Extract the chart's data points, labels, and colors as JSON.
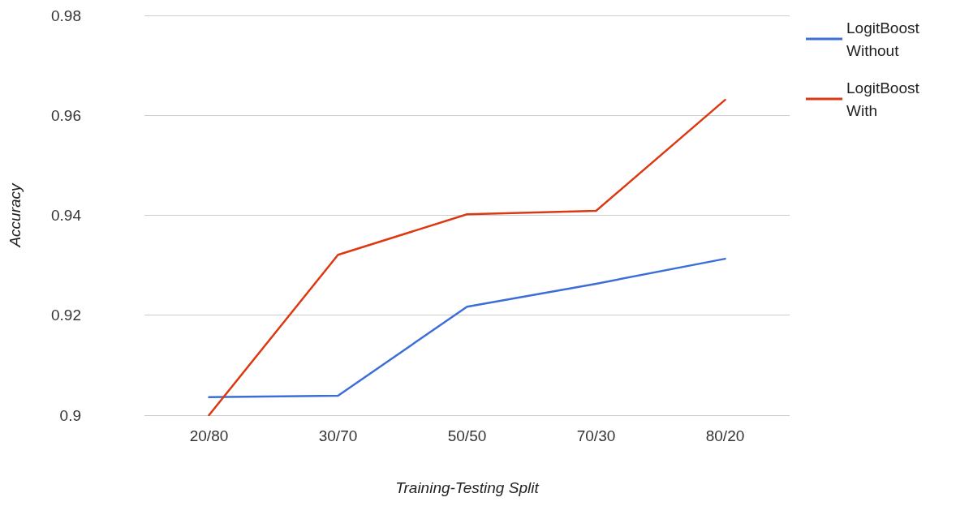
{
  "chart_data": {
    "type": "line",
    "xlabel": "Training-Testing Split",
    "ylabel": "Accuracy",
    "categories": [
      "20/80",
      "30/70",
      "50/50",
      "70/30",
      "80/20"
    ],
    "series": [
      {
        "name": "LogitBoost Without",
        "color": "#3d6ed8",
        "values": [
          0.9036,
          0.9039,
          0.9217,
          0.9263,
          0.9313
        ]
      },
      {
        "name": "LogitBoost With",
        "color": "#dc3912",
        "values": [
          0.9,
          0.9321,
          0.9402,
          0.9409,
          0.9631
        ]
      }
    ],
    "ylim": [
      0.9,
      0.98
    ],
    "yticks": [
      0.9,
      0.92,
      0.94,
      0.96,
      0.98
    ],
    "grid": "y",
    "legend": "top right",
    "marker": "none",
    "line_style": "solid"
  }
}
